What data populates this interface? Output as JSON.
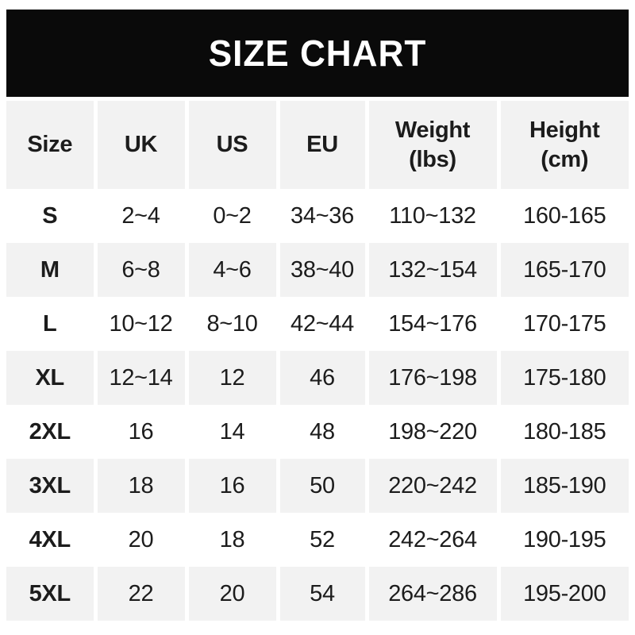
{
  "banner": {
    "title": "SIZE CHART",
    "background": "#0a0a0a",
    "text_color": "#ffffff"
  },
  "table": {
    "header_display": [
      "Size",
      "UK",
      "US",
      "EU",
      "Weight\n(lbs)",
      "Height\n(cm)"
    ],
    "stripe_color": "#f2f2f2",
    "row_color": "#ffffff",
    "text_color": "#1c1c1c"
  },
  "chart_data": {
    "type": "table",
    "title": "SIZE CHART",
    "columns": [
      "Size",
      "UK",
      "US",
      "EU",
      "Weight (lbs)",
      "Height (cm)"
    ],
    "rows": [
      [
        "S",
        "2~4",
        "0~2",
        "34~36",
        "110~132",
        "160-165"
      ],
      [
        "M",
        "6~8",
        "4~6",
        "38~40",
        "132~154",
        "165-170"
      ],
      [
        "L",
        "10~12",
        "8~10",
        "42~44",
        "154~176",
        "170-175"
      ],
      [
        "XL",
        "12~14",
        "12",
        "46",
        "176~198",
        "175-180"
      ],
      [
        "2XL",
        "16",
        "14",
        "48",
        "198~220",
        "180-185"
      ],
      [
        "3XL",
        "18",
        "16",
        "50",
        "220~242",
        "185-190"
      ],
      [
        "4XL",
        "20",
        "18",
        "52",
        "242~264",
        "190-195"
      ],
      [
        "5XL",
        "22",
        "20",
        "54",
        "264~286",
        "195-200"
      ]
    ]
  }
}
